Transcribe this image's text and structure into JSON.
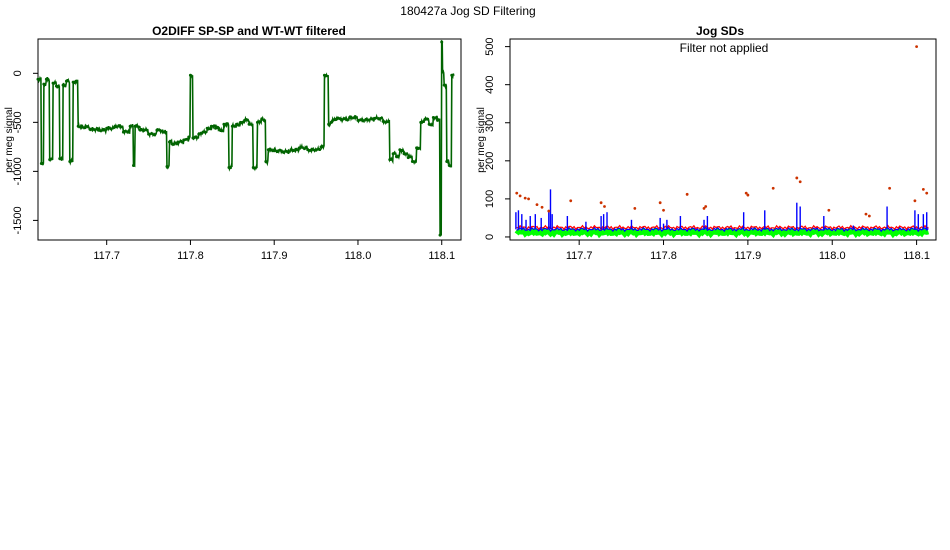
{
  "page_title": "180427a   Jog SD Filtering",
  "chart_data": [
    {
      "type": "line",
      "title": "O2DIFF SP-SP and WT-WT filtered",
      "xlabel": "",
      "ylabel": "per meg signal",
      "xlim": [
        117.618,
        118.123
      ],
      "ylim": [
        -1700,
        350
      ],
      "x_ticks": [
        117.7,
        117.8,
        117.9,
        118.0,
        118.1
      ],
      "x_tick_labels": [
        "117.7",
        "117.8",
        "117.9",
        "118.0",
        "118.1"
      ],
      "y_ticks": [
        0,
        -500,
        -1000,
        -1500
      ],
      "y_tick_labels": [
        "0",
        "-500",
        "-1000",
        "-1500"
      ],
      "grid": false,
      "series": [
        {
          "color": "#006400",
          "x": [
            117.618,
            117.622,
            117.625,
            117.628,
            117.632,
            117.636,
            117.64,
            117.644,
            117.648,
            117.652,
            117.656,
            117.66,
            117.664,
            117.666,
            117.67,
            117.68,
            117.69,
            117.7,
            117.71,
            117.72,
            117.728,
            117.732,
            117.734,
            117.736,
            117.74,
            117.75,
            117.76,
            117.768,
            117.772,
            117.775,
            117.778,
            117.785,
            117.792,
            117.798,
            117.8,
            117.803,
            117.806,
            117.81,
            117.815,
            117.82,
            117.825,
            117.83,
            117.835,
            117.84,
            117.846,
            117.85,
            117.855,
            117.86,
            117.865,
            117.87,
            117.875,
            117.88,
            117.885,
            117.888,
            117.89,
            117.893,
            117.9,
            117.91,
            117.92,
            117.93,
            117.94,
            117.95,
            117.956,
            117.96,
            117.965,
            117.968,
            117.97,
            117.975,
            117.98,
            117.99,
            118.0,
            118.01,
            118.02,
            118.03,
            118.038,
            118.042,
            118.046,
            118.05,
            118.055,
            118.06,
            118.065,
            118.07,
            118.075,
            118.08,
            118.085,
            118.09,
            118.095,
            118.098,
            118.1,
            118.101,
            118.103,
            118.106,
            118.109,
            118.112
          ],
          "values": [
            -60,
            -920,
            -110,
            -60,
            -880,
            -100,
            -130,
            -870,
            -120,
            -80,
            -900,
            -90,
            -80,
            -540,
            -550,
            -570,
            -580,
            -560,
            -540,
            -600,
            -540,
            -940,
            -540,
            -540,
            -580,
            -620,
            -580,
            -600,
            -950,
            -700,
            -720,
            -700,
            -680,
            -650,
            -20,
            -660,
            -650,
            -620,
            -600,
            -560,
            -540,
            -560,
            -580,
            -520,
            -960,
            -540,
            -520,
            -500,
            -480,
            -520,
            -960,
            -500,
            -470,
            -480,
            -900,
            -780,
            -790,
            -800,
            -780,
            -760,
            -780,
            -780,
            -750,
            -20,
            -520,
            -500,
            -480,
            -460,
            -470,
            -450,
            -480,
            -470,
            -460,
            -490,
            -880,
            -820,
            -850,
            -780,
            -820,
            -860,
            -900,
            -760,
            -500,
            -470,
            -520,
            -450,
            -480,
            -1650,
            320,
            20,
            -120,
            -900,
            -940,
            -20
          ]
        }
      ]
    },
    {
      "type": "line",
      "title": "Jog SDs",
      "annotation": "Filter not applied",
      "xlabel": "",
      "ylabel": "per meg signal",
      "xlim": [
        117.618,
        118.123
      ],
      "ylim": [
        -8,
        520
      ],
      "x_ticks": [
        117.7,
        117.8,
        117.9,
        118.0,
        118.1
      ],
      "x_tick_labels": [
        "117.7",
        "117.8",
        "117.9",
        "118.0",
        "118.1"
      ],
      "y_ticks": [
        0,
        100,
        200,
        300,
        400,
        500
      ],
      "y_tick_labels": [
        "0",
        "100",
        "200",
        "300",
        "400",
        "500"
      ],
      "grid": false,
      "blue_spikes": {
        "color": "#0000ff",
        "x": [
          117.625,
          117.628,
          117.632,
          117.637,
          117.642,
          117.648,
          117.655,
          117.664,
          117.666,
          117.668,
          117.686,
          117.708,
          117.726,
          117.729,
          117.733,
          117.762,
          117.796,
          117.8,
          117.804,
          117.82,
          117.848,
          117.852,
          117.895,
          117.92,
          117.958,
          117.962,
          117.99,
          118.025,
          118.065,
          118.098,
          118.102,
          118.108,
          118.112
        ],
        "values": [
          65,
          70,
          60,
          45,
          55,
          60,
          50,
          70,
          125,
          60,
          55,
          40,
          55,
          60,
          65,
          45,
          50,
          35,
          45,
          55,
          45,
          55,
          65,
          70,
          90,
          80,
          55,
          30,
          80,
          70,
          60,
          60,
          65
        ]
      },
      "red_points": {
        "color": "#cc3300",
        "x": [
          117.626,
          117.63,
          117.636,
          117.64,
          117.65,
          117.656,
          117.664,
          117.69,
          117.726,
          117.73,
          117.766,
          117.796,
          117.8,
          117.828,
          117.848,
          117.85,
          117.898,
          117.9,
          117.93,
          117.958,
          117.962,
          117.996,
          118.04,
          118.044,
          118.068,
          118.098,
          118.1,
          118.108,
          118.112
        ],
        "values": [
          115,
          108,
          102,
          100,
          85,
          78,
          68,
          95,
          90,
          80,
          75,
          90,
          70,
          112,
          75,
          80,
          115,
          110,
          128,
          155,
          145,
          70,
          60,
          55,
          128,
          95,
          500,
          125,
          115
        ]
      },
      "series": [
        {
          "color": "#00ff00",
          "baseline": 12
        },
        {
          "color": "#0000ff",
          "baseline": 20
        },
        {
          "color": "#ff0000",
          "baseline": 25
        }
      ]
    }
  ]
}
